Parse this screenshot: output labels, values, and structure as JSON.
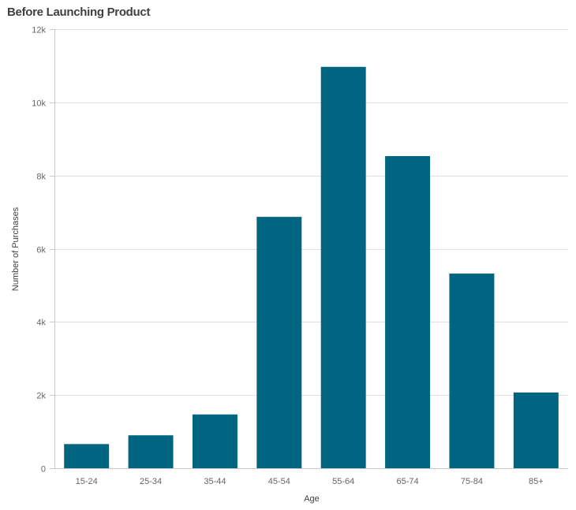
{
  "chart_data": {
    "type": "bar",
    "title": "Before Launching Product",
    "xlabel": "Age",
    "ylabel": "Number of Purchases",
    "categories": [
      "15-24",
      "25-34",
      "35-44",
      "45-54",
      "55-64",
      "65-74",
      "75-84",
      "85+"
    ],
    "values": [
      660,
      900,
      1470,
      6870,
      10970,
      8530,
      5320,
      2070
    ],
    "ylim": [
      0,
      12000
    ],
    "yticks": [
      0,
      2000,
      4000,
      6000,
      8000,
      10000,
      12000
    ],
    "ytick_labels": [
      "0",
      "2k",
      "4k",
      "6k",
      "8k",
      "10k",
      "12k"
    ],
    "grid": true,
    "legend": null,
    "colors": {
      "bar": "#006580",
      "grid": "#e0e0e0",
      "axis": "#c8c8c8"
    }
  }
}
